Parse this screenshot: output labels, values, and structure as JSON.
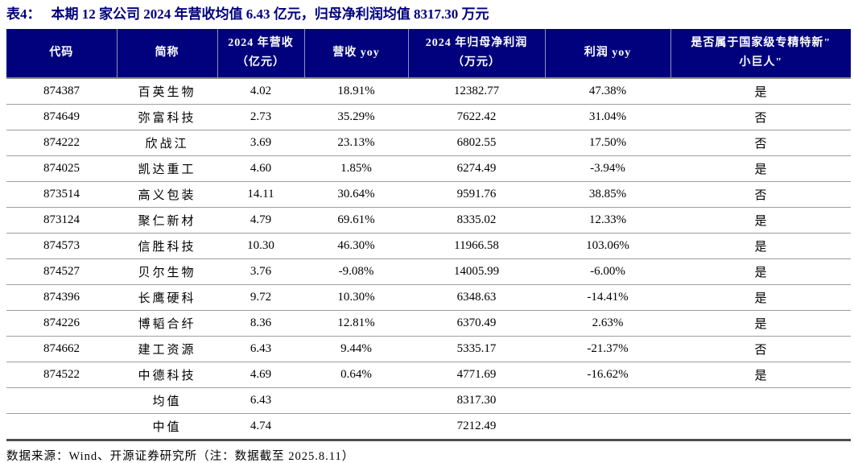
{
  "title": {
    "prefix": "表4：",
    "text": "本期 12 家公司 2024 年营收均值 6.43 亿元，归母净利润均值 8317.30 万元"
  },
  "colors": {
    "navy_header": "#01017D",
    "header_divider": "#8F91BD",
    "row_line": "#9E9E9E",
    "bottom_line": "#4F4F4F"
  },
  "table": {
    "columns": [
      {
        "key": "code",
        "label": "代码"
      },
      {
        "key": "name",
        "label": "简称"
      },
      {
        "key": "revenue",
        "label": "2024 年营收",
        "label2": "（亿元）"
      },
      {
        "key": "revenue-yoy",
        "label": "营收 yoy"
      },
      {
        "key": "profit",
        "label": "2024 年归母净利润",
        "label2": "（万元）"
      },
      {
        "key": "profit-yoy",
        "label": "利润 yoy"
      },
      {
        "key": "sme",
        "label": "是否属于国家级专精特新\"",
        "label2": "小巨人\""
      }
    ],
    "rows": [
      {
        "code": "874387",
        "name": "百英生物",
        "revenue": "4.02",
        "revenue_yoy": "18.91%",
        "profit": "12382.77",
        "profit_yoy": "47.38%",
        "sme": "是"
      },
      {
        "code": "874649",
        "name": "弥富科技",
        "revenue": "2.73",
        "revenue_yoy": "35.29%",
        "profit": "7622.42",
        "profit_yoy": "31.04%",
        "sme": "否"
      },
      {
        "code": "874222",
        "name": "欣战江",
        "revenue": "3.69",
        "revenue_yoy": "23.13%",
        "profit": "6802.55",
        "profit_yoy": "17.50%",
        "sme": "否"
      },
      {
        "code": "874025",
        "name": "凯达重工",
        "revenue": "4.60",
        "revenue_yoy": "1.85%",
        "profit": "6274.49",
        "profit_yoy": "-3.94%",
        "sme": "是"
      },
      {
        "code": "873514",
        "name": "高义包装",
        "revenue": "14.11",
        "revenue_yoy": "30.64%",
        "profit": "9591.76",
        "profit_yoy": "38.85%",
        "sme": "否"
      },
      {
        "code": "873124",
        "name": "聚仁新材",
        "revenue": "4.79",
        "revenue_yoy": "69.61%",
        "profit": "8335.02",
        "profit_yoy": "12.33%",
        "sme": "是"
      },
      {
        "code": "874573",
        "name": "信胜科技",
        "revenue": "10.30",
        "revenue_yoy": "46.30%",
        "profit": "11966.58",
        "profit_yoy": "103.06%",
        "sme": "是"
      },
      {
        "code": "874527",
        "name": "贝尔生物",
        "revenue": "3.76",
        "revenue_yoy": "-9.08%",
        "profit": "14005.99",
        "profit_yoy": "-6.00%",
        "sme": "是"
      },
      {
        "code": "874396",
        "name": "长鹰硬科",
        "revenue": "9.72",
        "revenue_yoy": "10.30%",
        "profit": "6348.63",
        "profit_yoy": "-14.41%",
        "sme": "是"
      },
      {
        "code": "874226",
        "name": "博韬合纤",
        "revenue": "8.36",
        "revenue_yoy": "12.81%",
        "profit": "6370.49",
        "profit_yoy": "2.63%",
        "sme": "是"
      },
      {
        "code": "874662",
        "name": "建工资源",
        "revenue": "6.43",
        "revenue_yoy": "9.44%",
        "profit": "5335.17",
        "profit_yoy": "-21.37%",
        "sme": "否"
      },
      {
        "code": "874522",
        "name": "中德科技",
        "revenue": "4.69",
        "revenue_yoy": "0.64%",
        "profit": "4771.69",
        "profit_yoy": "-16.62%",
        "sme": "是"
      }
    ],
    "summary": [
      {
        "name": "均值",
        "revenue": "6.43",
        "profit": "8317.30"
      },
      {
        "name": "中值",
        "revenue": "4.74",
        "profit": "7212.49"
      }
    ]
  },
  "footer": {
    "source": "数据来源：Wind、开源证券研究所（注：数据截至 2025.8.11）"
  }
}
